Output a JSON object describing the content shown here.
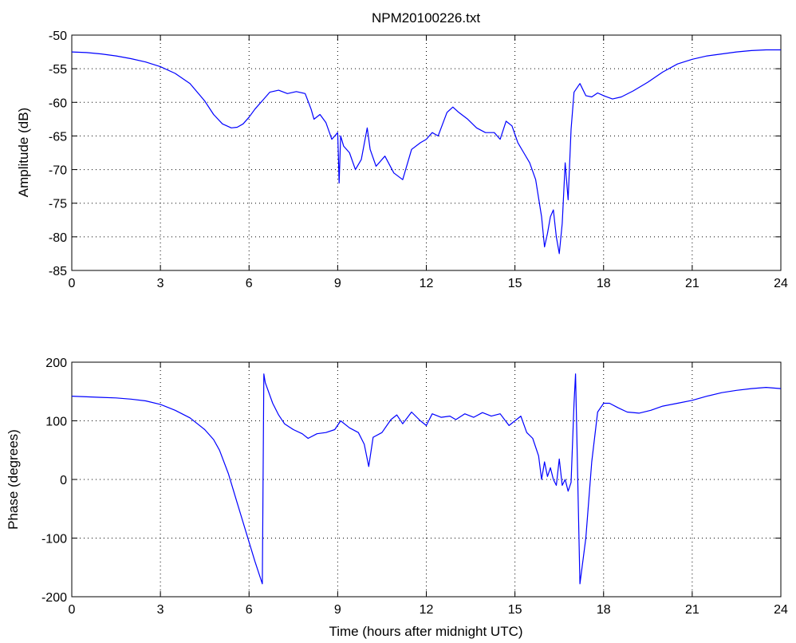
{
  "chart_data": [
    {
      "type": "line",
      "title": "NPM20100226.txt",
      "xlabel": "",
      "ylabel": "Amplitude (dB)",
      "xlim": [
        0,
        24
      ],
      "ylim": [
        -85,
        -50
      ],
      "xticks": [
        0,
        3,
        6,
        9,
        12,
        15,
        18,
        21,
        24
      ],
      "yticks": [
        -85,
        -80,
        -75,
        -70,
        -65,
        -60,
        -55,
        -50
      ],
      "xtick_labels": [
        "0",
        "3",
        "6",
        "9",
        "12",
        "15",
        "18",
        "21",
        "24"
      ],
      "ytick_labels": [
        "-85",
        "-80",
        "-75",
        "-70",
        "-65",
        "-60",
        "-55",
        "-50"
      ],
      "grid": true,
      "line_color": "#0000ff",
      "series": [
        {
          "x": [
            0,
            0.5,
            1,
            1.5,
            2,
            2.5,
            3,
            3.5,
            4,
            4.5,
            4.8,
            5.1,
            5.4,
            5.6,
            5.8,
            6.0,
            6.2,
            6.5,
            6.7,
            7.0,
            7.3,
            7.6,
            7.9,
            8.1,
            8.2,
            8.4,
            8.6,
            8.8,
            9.0,
            9.05,
            9.1,
            9.2,
            9.4,
            9.6,
            9.8,
            10.0,
            10.1,
            10.3,
            10.6,
            10.9,
            11.2,
            11.5,
            11.8,
            12.0,
            12.2,
            12.4,
            12.7,
            12.9,
            13.1,
            13.4,
            13.7,
            14.0,
            14.3,
            14.5,
            14.7,
            14.9,
            15.1,
            15.3,
            15.5,
            15.7,
            15.9,
            16.0,
            16.1,
            16.2,
            16.3,
            16.4,
            16.5,
            16.6,
            16.7,
            16.8,
            16.9,
            17.0,
            17.2,
            17.4,
            17.6,
            17.8,
            18.0,
            18.3,
            18.6,
            19.0,
            19.5,
            20.0,
            20.5,
            21.0,
            21.5,
            22.0,
            22.5,
            23.0,
            23.5,
            24.0
          ],
          "y": [
            -52.5,
            -52.6,
            -52.8,
            -53.1,
            -53.5,
            -54.0,
            -54.7,
            -55.7,
            -57.2,
            -59.8,
            -61.8,
            -63.2,
            -63.8,
            -63.7,
            -63.2,
            -62.2,
            -61.0,
            -59.5,
            -58.5,
            -58.2,
            -58.7,
            -58.4,
            -58.7,
            -61.0,
            -62.5,
            -61.8,
            -63.0,
            -65.5,
            -64.5,
            -72.0,
            -65.0,
            -66.5,
            -67.5,
            -70.0,
            -68.5,
            -63.8,
            -67.0,
            -69.5,
            -68.0,
            -70.5,
            -71.5,
            -67.0,
            -66.0,
            -65.5,
            -64.5,
            -65.0,
            -61.5,
            -60.7,
            -61.5,
            -62.5,
            -63.8,
            -64.5,
            -64.5,
            -65.5,
            -62.8,
            -63.5,
            -66.0,
            -67.5,
            -69.0,
            -71.5,
            -77.0,
            -81.5,
            -79.5,
            -77.0,
            -76.0,
            -80.0,
            -82.5,
            -78.0,
            -69.0,
            -74.5,
            -64.0,
            -58.5,
            -57.2,
            -59.0,
            -59.2,
            -58.6,
            -59.0,
            -59.5,
            -59.2,
            -58.3,
            -57.0,
            -55.5,
            -54.3,
            -53.6,
            -53.1,
            -52.8,
            -52.5,
            -52.3,
            -52.2,
            -52.2
          ]
        }
      ]
    },
    {
      "type": "line",
      "title": "",
      "xlabel": "Time (hours after midnight UTC)",
      "ylabel": "Phase (degrees)",
      "xlim": [
        0,
        24
      ],
      "ylim": [
        -200,
        200
      ],
      "xticks": [
        0,
        3,
        6,
        9,
        12,
        15,
        18,
        21,
        24
      ],
      "yticks": [
        -200,
        -100,
        0,
        100,
        200
      ],
      "xtick_labels": [
        "0",
        "3",
        "6",
        "9",
        "12",
        "15",
        "18",
        "21",
        "24"
      ],
      "ytick_labels": [
        "-200",
        "-100",
        "0",
        "100",
        "200"
      ],
      "grid": true,
      "line_color": "#0000ff",
      "series": [
        {
          "x": [
            0,
            0.5,
            1,
            1.5,
            2,
            2.5,
            3,
            3.5,
            4,
            4.5,
            4.8,
            5.0,
            5.3,
            5.6,
            5.9,
            6.2,
            6.45,
            6.5,
            6.55,
            6.8,
            7.0,
            7.2,
            7.5,
            7.8,
            8.0,
            8.3,
            8.6,
            8.9,
            9.1,
            9.4,
            9.7,
            9.9,
            10.05,
            10.2,
            10.5,
            10.8,
            11.0,
            11.2,
            11.5,
            11.8,
            12.0,
            12.2,
            12.5,
            12.8,
            13.0,
            13.3,
            13.6,
            13.9,
            14.2,
            14.5,
            14.8,
            15.0,
            15.2,
            15.4,
            15.6,
            15.8,
            15.9,
            16.0,
            16.1,
            16.2,
            16.3,
            16.4,
            16.5,
            16.6,
            16.7,
            16.8,
            16.9,
            17.0,
            17.05,
            17.2,
            17.4,
            17.6,
            17.8,
            18.0,
            18.2,
            18.5,
            18.8,
            19.2,
            19.6,
            20.0,
            20.5,
            21.0,
            21.5,
            22.0,
            22.5,
            23.0,
            23.5,
            24.0
          ],
          "y": [
            142,
            141,
            140,
            139,
            137,
            134,
            128,
            118,
            105,
            85,
            68,
            50,
            10,
            -40,
            -90,
            -140,
            -178,
            180,
            165,
            130,
            110,
            95,
            85,
            78,
            70,
            78,
            80,
            85,
            100,
            88,
            80,
            60,
            22,
            72,
            80,
            102,
            110,
            95,
            115,
            100,
            92,
            112,
            106,
            108,
            102,
            112,
            106,
            114,
            108,
            112,
            92,
            100,
            108,
            80,
            70,
            40,
            0,
            30,
            5,
            20,
            0,
            -10,
            35,
            -10,
            0,
            -20,
            -5,
            130,
            180,
            -178,
            -100,
            30,
            115,
            130,
            130,
            122,
            115,
            113,
            118,
            125,
            130,
            135,
            142,
            148,
            152,
            155,
            157,
            155
          ]
        }
      ]
    }
  ]
}
